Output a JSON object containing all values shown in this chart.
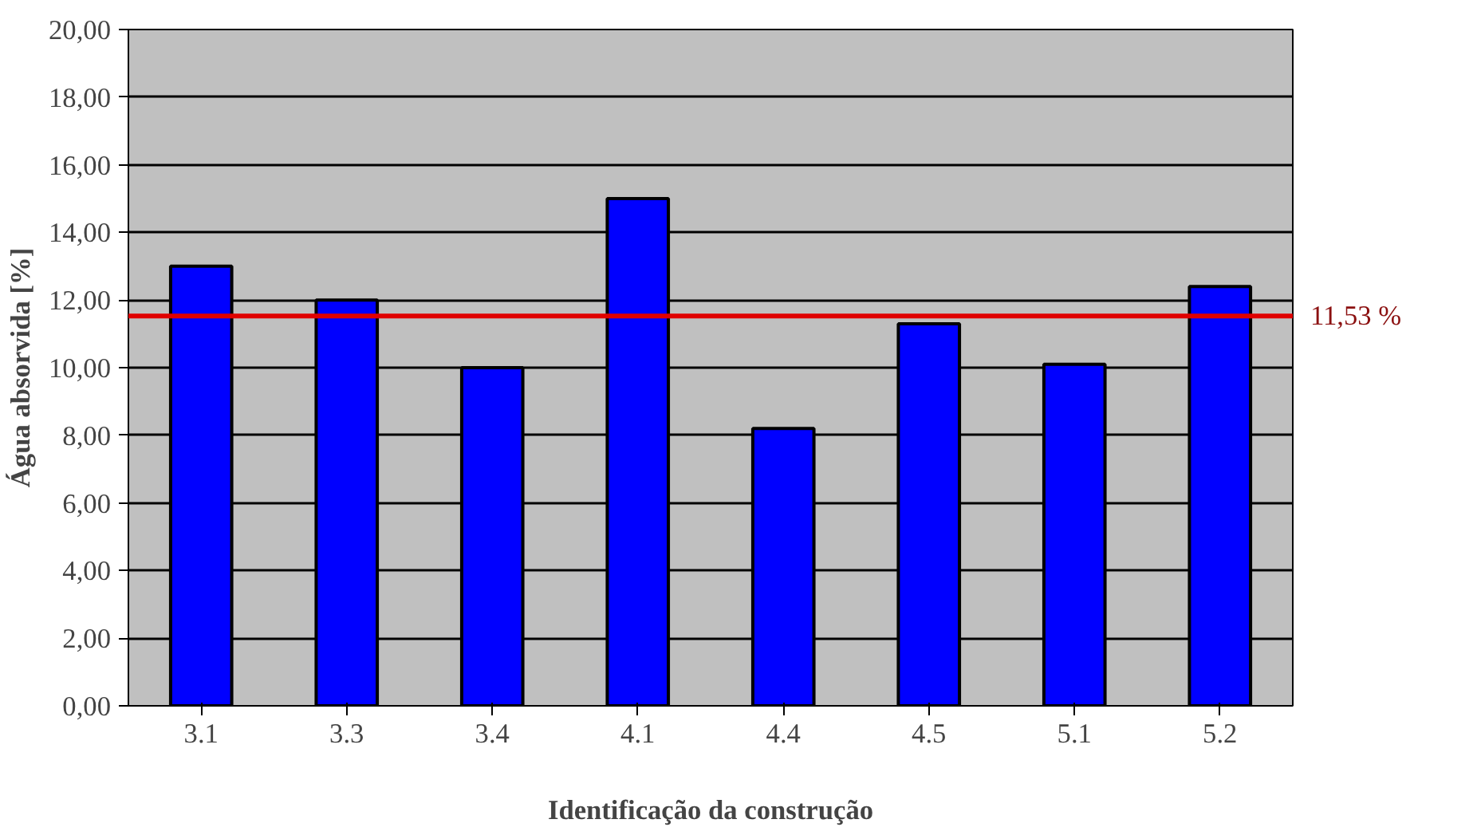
{
  "chart_data": {
    "type": "bar",
    "xlabel": "Identificação da construção",
    "ylabel": "Água absorvida [%]",
    "categories": [
      "3.1",
      "3.3",
      "3.4",
      "4.1",
      "4.4",
      "4.5",
      "5.1",
      "5.2"
    ],
    "values": [
      13.0,
      12.0,
      10.0,
      15.0,
      8.2,
      11.3,
      10.1,
      12.4
    ],
    "color": "#0000ff",
    "ylim": [
      0,
      20
    ],
    "yticks": [
      {
        "value": 0,
        "label": "0,00"
      },
      {
        "value": 2,
        "label": "2,00"
      },
      {
        "value": 4,
        "label": "4,00"
      },
      {
        "value": 6,
        "label": "6,00"
      },
      {
        "value": 8,
        "label": "8,00"
      },
      {
        "value": 10,
        "label": "10,00"
      },
      {
        "value": 12,
        "label": "12,00"
      },
      {
        "value": 14,
        "label": "14,00"
      },
      {
        "value": 16,
        "label": "16,00"
      },
      {
        "value": 18,
        "label": "18,00"
      },
      {
        "value": 20,
        "label": "20,00"
      }
    ],
    "grid": "y",
    "ref_lines": [
      {
        "axis": "y",
        "value": 11.53,
        "label": "11,53 %",
        "color": "#e00000"
      }
    ]
  }
}
